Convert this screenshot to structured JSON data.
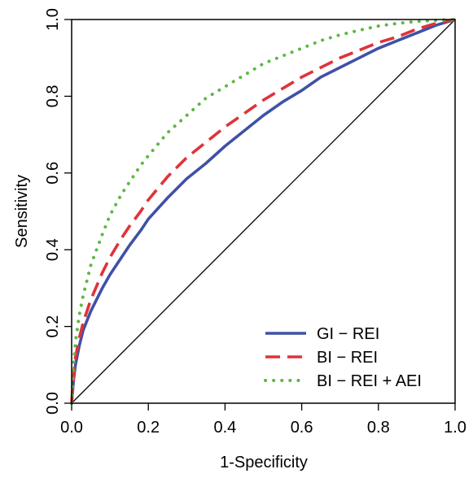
{
  "chart_data": {
    "type": "line",
    "title": "",
    "xlabel": "1-Specificity",
    "ylabel": "Sensitivity",
    "xlim": [
      0,
      1
    ],
    "ylim": [
      0,
      1
    ],
    "x_ticks": [
      "0.0",
      "0.2",
      "0.4",
      "0.6",
      "0.8",
      "1.0"
    ],
    "y_ticks": [
      "0.0",
      "0.2",
      "0.4",
      "0.6",
      "0.8",
      "1.0"
    ],
    "grid": false,
    "legend_position": "bottom-right",
    "reference_line": {
      "x": [
        0,
        1
      ],
      "y": [
        0,
        1
      ],
      "color": "#000000"
    },
    "series": [
      {
        "name": "GI − REI",
        "color": "#3f51a6",
        "style": "solid",
        "x": [
          0,
          0.005,
          0.01,
          0.02,
          0.03,
          0.05,
          0.08,
          0.1,
          0.13,
          0.15,
          0.18,
          0.2,
          0.25,
          0.3,
          0.35,
          0.4,
          0.45,
          0.5,
          0.55,
          0.6,
          0.65,
          0.7,
          0.75,
          0.8,
          0.85,
          0.9,
          0.95,
          1.0
        ],
        "y": [
          0,
          0.06,
          0.1,
          0.15,
          0.19,
          0.24,
          0.3,
          0.335,
          0.38,
          0.41,
          0.45,
          0.48,
          0.535,
          0.585,
          0.625,
          0.67,
          0.71,
          0.75,
          0.785,
          0.815,
          0.85,
          0.875,
          0.9,
          0.925,
          0.945,
          0.965,
          0.985,
          1.0
        ]
      },
      {
        "name": "BI − REI",
        "color": "#e0323a",
        "style": "dashed",
        "x": [
          0,
          0.005,
          0.01,
          0.02,
          0.03,
          0.05,
          0.08,
          0.1,
          0.13,
          0.15,
          0.18,
          0.2,
          0.25,
          0.3,
          0.35,
          0.4,
          0.45,
          0.5,
          0.55,
          0.6,
          0.65,
          0.7,
          0.75,
          0.8,
          0.85,
          0.9,
          0.95,
          1.0
        ],
        "y": [
          0,
          0.07,
          0.12,
          0.17,
          0.21,
          0.27,
          0.34,
          0.38,
          0.43,
          0.46,
          0.5,
          0.53,
          0.59,
          0.64,
          0.68,
          0.72,
          0.755,
          0.79,
          0.82,
          0.85,
          0.875,
          0.9,
          0.92,
          0.94,
          0.955,
          0.975,
          0.99,
          1.0
        ]
      },
      {
        "name": "BI − REI + AEI",
        "color": "#5db845",
        "style": "dotted",
        "x": [
          0,
          0.005,
          0.01,
          0.02,
          0.03,
          0.05,
          0.08,
          0.1,
          0.13,
          0.15,
          0.18,
          0.2,
          0.25,
          0.3,
          0.35,
          0.4,
          0.45,
          0.5,
          0.55,
          0.6,
          0.65,
          0.7,
          0.75,
          0.8,
          0.85,
          0.9,
          0.95,
          1.0
        ],
        "y": [
          0,
          0.1,
          0.16,
          0.23,
          0.28,
          0.36,
          0.44,
          0.49,
          0.545,
          0.575,
          0.62,
          0.645,
          0.705,
          0.75,
          0.795,
          0.825,
          0.855,
          0.885,
          0.905,
          0.925,
          0.945,
          0.96,
          0.972,
          0.983,
          0.99,
          0.995,
          0.998,
          1.0
        ]
      }
    ]
  }
}
